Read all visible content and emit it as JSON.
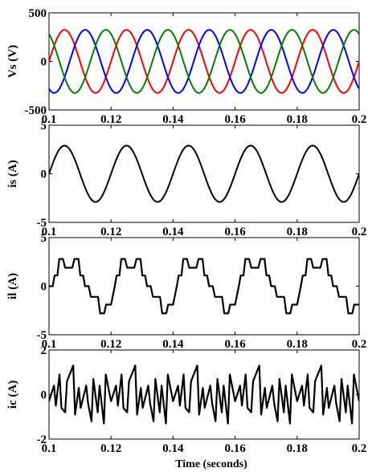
{
  "chart_data": [
    {
      "type": "line",
      "ylabel": "Vs (V)",
      "xlim": [
        0.1,
        0.2
      ],
      "ylim": [
        -500,
        500
      ],
      "xticks": [
        "0.1",
        "0.12",
        "0.14",
        "0.16",
        "0.18",
        "0.2"
      ],
      "yticks": [
        "500",
        "0",
        "-500"
      ],
      "series_colors": [
        "#ff0000",
        "#0000ff",
        "#008000"
      ],
      "waveform": {
        "frequency_hz": 50,
        "amplitude": 325,
        "phases_deg": [
          0,
          -120,
          120
        ]
      },
      "series": [
        {
          "x": [
            0.1,
            0.105,
            0.11,
            0.115,
            0.12
          ],
          "values": [
            0,
            325,
            0,
            -325,
            0
          ]
        }
      ]
    },
    {
      "type": "line",
      "ylabel": "is (A)",
      "xlim": [
        0.1,
        0.2
      ],
      "ylim": [
        -5,
        5
      ],
      "xticks": [
        "0.1",
        "0.12",
        "0.14",
        "0.16",
        "0.18",
        "0.2"
      ],
      "yticks": [
        "5",
        "0",
        "-5"
      ],
      "series_colors": [
        "#000000"
      ],
      "waveform": {
        "frequency_hz": 50,
        "amplitude": 2.9,
        "phase_deg": 0
      },
      "series": [
        {
          "x": [
            0.1,
            0.105,
            0.11,
            0.115,
            0.12
          ],
          "values": [
            0,
            2.9,
            0,
            -2.9,
            0
          ]
        }
      ]
    },
    {
      "type": "line",
      "ylabel": "il (A)",
      "xlim": [
        0.1,
        0.2
      ],
      "ylim": [
        -5,
        5
      ],
      "xticks": [
        "0.1",
        "0.12",
        "0.14",
        "0.16",
        "0.18",
        "0.2"
      ],
      "yticks": [
        "5",
        "0",
        "-5"
      ],
      "series_colors": [
        "#000000"
      ],
      "series": [
        {
          "x": [
            0.1,
            0.1012,
            0.1018,
            0.1027,
            0.1033,
            0.1045,
            0.1052,
            0.1075,
            0.1082,
            0.1095,
            0.1101,
            0.111,
            0.1116,
            0.1128,
            0.1135,
            0.1158,
            0.1165,
            0.1178,
            0.1184,
            0.12
          ],
          "values": [
            0,
            0,
            1.1,
            1.1,
            2.8,
            2.8,
            1.9,
            1.9,
            2.8,
            2.8,
            1.1,
            1.1,
            0,
            0,
            -1.1,
            -1.1,
            -2.8,
            -2.8,
            -1.9,
            -1.9
          ]
        }
      ]
    },
    {
      "type": "line",
      "ylabel": "ic (A)",
      "xlim": [
        0.1,
        0.2
      ],
      "ylim": [
        -2,
        2
      ],
      "xticks": [
        "0.1",
        "0.12",
        "0.14",
        "0.16",
        "0.18",
        "0.2"
      ],
      "yticks": [
        "2",
        "0",
        "-2"
      ],
      "xlabel": "Time (seconds)",
      "series_colors": [
        "#000000"
      ],
      "series": [
        {
          "x": [
            0.1,
            0.1016,
            0.1022,
            0.1034,
            0.104,
            0.1052,
            0.1058,
            0.1078,
            0.1084,
            0.1096,
            0.1102,
            0.112,
            0.1126,
            0.1137,
            0.1143,
            0.1157,
            0.1163,
            0.1177,
            0.1183,
            0.12
          ],
          "values": [
            -0.3,
            0.4,
            -0.5,
            0.9,
            -0.6,
            -0.8,
            0.6,
            1.3,
            -0.9,
            0.3,
            -0.6,
            0.4,
            -0.4,
            -1.2,
            0.7,
            -0.8,
            0.4,
            -1.3,
            0.9,
            -0.3
          ]
        }
      ]
    }
  ]
}
